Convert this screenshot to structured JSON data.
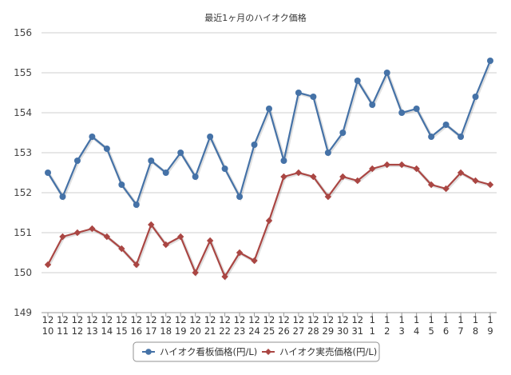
{
  "chart_data": {
    "type": "line",
    "title": "最近1ヶ月のハイオク価格",
    "xlabel": "",
    "ylabel": "",
    "ylim": [
      149,
      156
    ],
    "yticks": [
      149,
      150,
      151,
      152,
      153,
      154,
      155,
      156
    ],
    "grid": true,
    "legend": "bottom",
    "categories": [
      {
        "month": "12",
        "day": "10"
      },
      {
        "month": "12",
        "day": "11"
      },
      {
        "month": "12",
        "day": "12"
      },
      {
        "month": "12",
        "day": "13"
      },
      {
        "month": "12",
        "day": "14"
      },
      {
        "month": "12",
        "day": "15"
      },
      {
        "month": "12",
        "day": "16"
      },
      {
        "month": "12",
        "day": "17"
      },
      {
        "month": "12",
        "day": "18"
      },
      {
        "month": "12",
        "day": "19"
      },
      {
        "month": "12",
        "day": "20"
      },
      {
        "month": "12",
        "day": "21"
      },
      {
        "month": "12",
        "day": "22"
      },
      {
        "month": "12",
        "day": "23"
      },
      {
        "month": "12",
        "day": "24"
      },
      {
        "month": "12",
        "day": "25"
      },
      {
        "month": "12",
        "day": "26"
      },
      {
        "month": "12",
        "day": "27"
      },
      {
        "month": "12",
        "day": "28"
      },
      {
        "month": "12",
        "day": "29"
      },
      {
        "month": "12",
        "day": "30"
      },
      {
        "month": "12",
        "day": "31"
      },
      {
        "month": "1",
        "day": "1"
      },
      {
        "month": "1",
        "day": "2"
      },
      {
        "month": "1",
        "day": "3"
      },
      {
        "month": "1",
        "day": "4"
      },
      {
        "month": "1",
        "day": "5"
      },
      {
        "month": "1",
        "day": "6"
      },
      {
        "month": "1",
        "day": "7"
      },
      {
        "month": "1",
        "day": "8"
      },
      {
        "month": "1",
        "day": "9"
      }
    ],
    "series": [
      {
        "name": "ハイオク看板価格(円/L)",
        "color": "#4572a7",
        "marker": "circle",
        "values": [
          152.5,
          151.9,
          152.8,
          153.4,
          153.1,
          152.2,
          151.7,
          152.8,
          152.5,
          153.0,
          152.4,
          153.4,
          152.6,
          151.9,
          153.2,
          154.1,
          152.8,
          154.5,
          154.4,
          153.0,
          153.5,
          154.8,
          154.2,
          155.0,
          154.0,
          154.1,
          153.4,
          153.7,
          153.4,
          154.4,
          155.3
        ]
      },
      {
        "name": "ハイオク実売価格(円/L)",
        "color": "#aa4643",
        "marker": "diamond",
        "values": [
          150.2,
          150.9,
          151.0,
          151.1,
          150.9,
          150.6,
          150.2,
          151.2,
          150.7,
          150.9,
          150.0,
          150.8,
          149.9,
          150.5,
          150.3,
          151.3,
          152.4,
          152.5,
          152.4,
          151.9,
          152.4,
          152.3,
          152.6,
          152.7,
          152.7,
          152.6,
          152.2,
          152.1,
          152.5,
          152.3,
          152.2
        ]
      }
    ]
  }
}
